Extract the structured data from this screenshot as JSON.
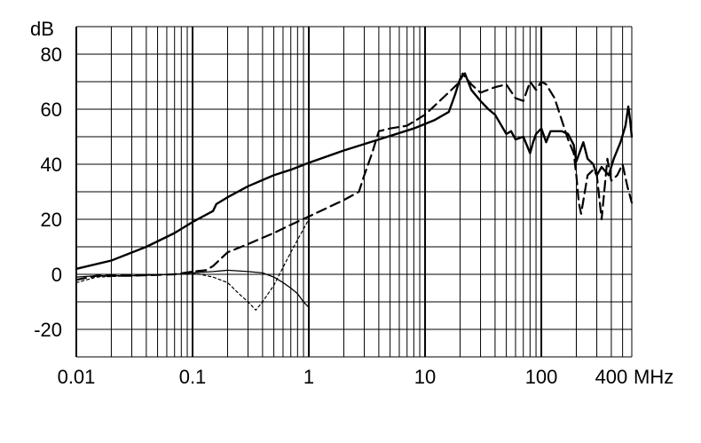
{
  "chart_data": {
    "type": "line",
    "title": "",
    "xlabel": "",
    "ylabel": "",
    "y_unit": "dB",
    "x_unit": "MHz",
    "x_scale": "log",
    "xlim": [
      0.01,
      600
    ],
    "ylim": [
      -30,
      90
    ],
    "grid": true,
    "legend": "none",
    "x_ticks": [
      {
        "value": 0.01,
        "label": "0.01"
      },
      {
        "value": 0.1,
        "label": "0.1"
      },
      {
        "value": 1,
        "label": "1"
      },
      {
        "value": 10,
        "label": "10"
      },
      {
        "value": 100,
        "label": "100"
      },
      {
        "value": 400,
        "label": "400"
      }
    ],
    "y_ticks": [
      {
        "value": 80,
        "label": "80"
      },
      {
        "value": 60,
        "label": "60"
      },
      {
        "value": 40,
        "label": "40"
      },
      {
        "value": 20,
        "label": "20"
      },
      {
        "value": 0,
        "label": "0"
      },
      {
        "value": -20,
        "label": "-20"
      }
    ],
    "series": [
      {
        "style": "solid-thick",
        "color": "#000000",
        "x": [
          0.01,
          0.02,
          0.04,
          0.07,
          0.1,
          0.15,
          0.16,
          0.2,
          0.3,
          0.5,
          0.7,
          1,
          2,
          4,
          8,
          12,
          16,
          18,
          20,
          22,
          25,
          30,
          35,
          40,
          50,
          55,
          60,
          70,
          80,
          85,
          90,
          100,
          110,
          120,
          150,
          170,
          190,
          200,
          230,
          250,
          280,
          300,
          330,
          380,
          420,
          480,
          530,
          560,
          580,
          600
        ],
        "y": [
          2,
          5,
          10,
          15,
          19,
          23,
          25.5,
          28,
          32,
          36,
          38,
          40.5,
          45,
          49,
          53,
          56,
          59,
          65,
          71,
          73,
          67,
          63,
          60,
          58,
          51,
          52,
          49,
          50,
          44,
          48,
          51,
          53,
          48,
          52,
          52,
          51,
          47,
          41,
          48,
          42,
          40,
          36,
          39,
          36,
          42,
          48,
          54,
          61,
          56,
          50
        ]
      },
      {
        "style": "dashed",
        "color": "#000000",
        "x": [
          0.01,
          0.015,
          0.03,
          0.07,
          0.1,
          0.13,
          0.15,
          0.2,
          0.3,
          0.5,
          0.7,
          1,
          2,
          2.7,
          3,
          3.5,
          4,
          5,
          7,
          10,
          15,
          20,
          21,
          25,
          30,
          40,
          50,
          60,
          70,
          80,
          90,
          100,
          110,
          130,
          150,
          170,
          190,
          200,
          210,
          220,
          250,
          280,
          300,
          330,
          370,
          400,
          450,
          500,
          550,
          600
        ],
        "y": [
          -2,
          -0.5,
          -0.5,
          0,
          1,
          1.5,
          3,
          8,
          11,
          15,
          18,
          21,
          27,
          30,
          36,
          44,
          52,
          53,
          54,
          58,
          65,
          70,
          73,
          69,
          66,
          68,
          69,
          64,
          63,
          70,
          67,
          70,
          69,
          64,
          56,
          49,
          44,
          36,
          26,
          22,
          36,
          38,
          36,
          20,
          42,
          34,
          36,
          40,
          32,
          26
        ]
      },
      {
        "style": "dotted-thin",
        "color": "#000000",
        "x": [
          0.01,
          0.015,
          0.03,
          0.07,
          0.1,
          0.15,
          0.2,
          0.25,
          0.3,
          0.35,
          0.4,
          0.5,
          0.7,
          1
        ],
        "y": [
          -3,
          -1,
          -0.5,
          0,
          0.5,
          -1,
          -3,
          -7,
          -10,
          -13,
          -10,
          -4,
          8,
          20
        ]
      },
      {
        "style": "solid-thin",
        "color": "#000000",
        "x": [
          0.01,
          0.015,
          0.03,
          0.07,
          0.1,
          0.15,
          0.2,
          0.3,
          0.4,
          0.5,
          0.6,
          0.7,
          0.8,
          0.9,
          1
        ],
        "y": [
          -1,
          -0.5,
          -0.5,
          0,
          0.5,
          1,
          1.5,
          1,
          0.5,
          -1,
          -3,
          -5,
          -7,
          -10,
          -12
        ]
      }
    ]
  }
}
